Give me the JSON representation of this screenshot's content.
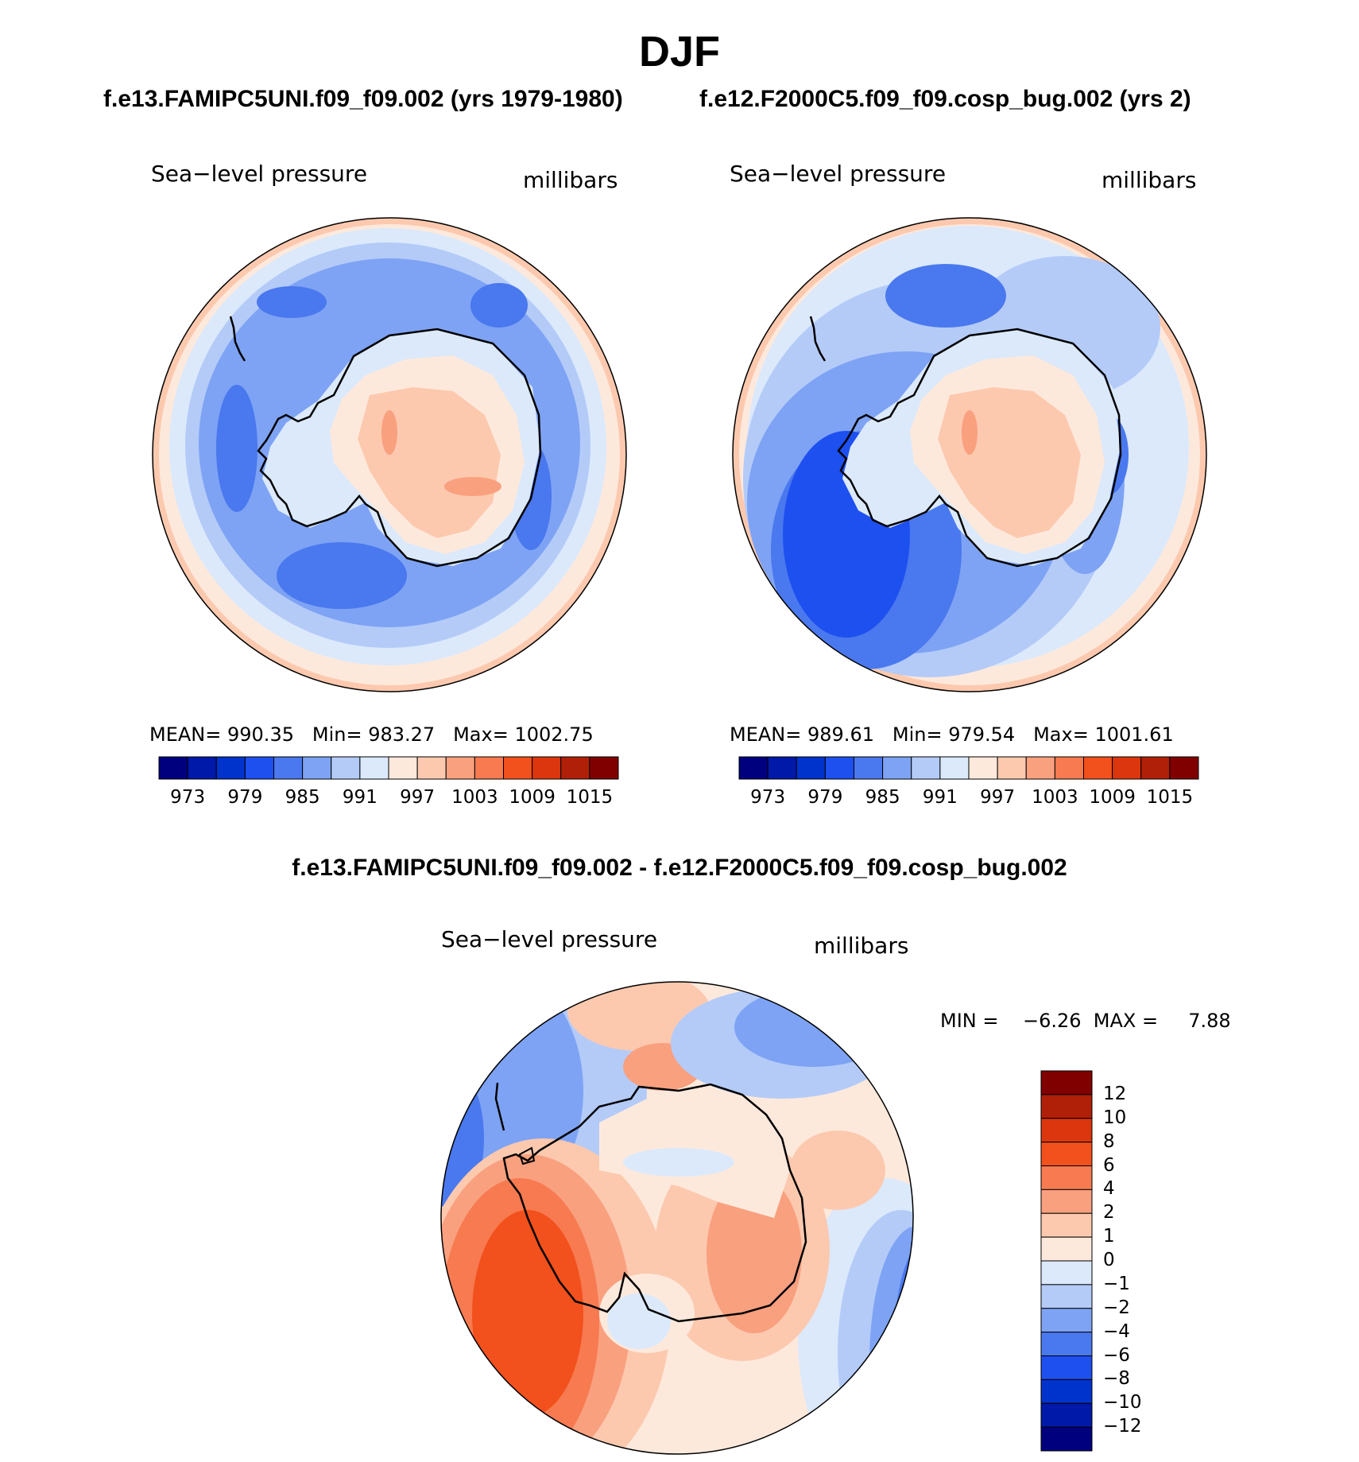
{
  "title": "DJF",
  "panels": [
    {
      "case": "f.e13.FAMIPC5UNI.f09_f09.002 (yrs 1979-1980)",
      "variable": "Sea−level pressure",
      "units": "millibars",
      "stats": {
        "mean_label": "MEAN=",
        "mean": "990.35",
        "min_label": "Min=",
        "min": "983.27",
        "max_label": "Max=",
        "max": "1002.75"
      }
    },
    {
      "case": "f.e12.F2000C5.f09_f09.cosp_bug.002 (yrs 2)",
      "variable": "Sea−level pressure",
      "units": "millibars",
      "stats": {
        "mean_label": "MEAN=",
        "mean": "989.61",
        "min_label": "Min=",
        "min": "979.54",
        "max_label": "Max=",
        "max": "1001.61"
      }
    }
  ],
  "colorbar": {
    "colors": [
      "#00007f",
      "#0019a8",
      "#0033cc",
      "#1e50f0",
      "#4a78ee",
      "#7ea3f4",
      "#b4cbf8",
      "#dbe9fb",
      "#fde9dc",
      "#fcc9af",
      "#f9a07f",
      "#f77a50",
      "#f2501c",
      "#db360d",
      "#b02008",
      "#800000"
    ],
    "labels": [
      "973",
      "979",
      "985",
      "991",
      "997",
      "1003",
      "1009",
      "1015"
    ]
  },
  "difference": {
    "title": "f.e13.FAMIPC5UNI.f09_f09.002 - f.e12.F2000C5.f09_f09.cosp_bug.002",
    "variable": "Sea−level pressure",
    "units": "millibars",
    "minmax": "MIN =    −6.26  MAX =     7.88",
    "colorbar": {
      "colors_top_to_bottom": [
        "#800000",
        "#b02008",
        "#db360d",
        "#f2501c",
        "#f77a50",
        "#f9a07f",
        "#fcc9af",
        "#fde9dc",
        "#dbe9fb",
        "#b4cbf8",
        "#7ea3f4",
        "#4a78ee",
        "#1e50f0",
        "#0033cc",
        "#0019a8",
        "#00007f"
      ],
      "labels": [
        "12",
        "10",
        "8",
        "6",
        "4",
        "2",
        "1",
        "0",
        "−1",
        "−2",
        "−4",
        "−6",
        "−8",
        "−10",
        "−12"
      ]
    }
  }
}
